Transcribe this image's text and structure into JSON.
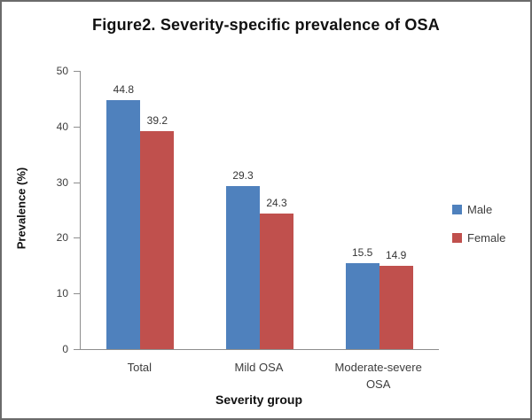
{
  "chart_data": {
    "type": "bar",
    "title": "Figure2. Severity-specific prevalence of OSA",
    "categories": [
      "Total",
      "Mild OSA",
      "Moderate-severe OSA"
    ],
    "series": [
      {
        "name": "Male",
        "color": "#4F81BD",
        "values": [
          44.8,
          29.3,
          15.5
        ]
      },
      {
        "name": "Female",
        "color": "#C0504D",
        "values": [
          39.2,
          24.3,
          14.9
        ]
      }
    ],
    "value_labels": [
      "44.8",
      "39.2",
      "29.3",
      "24.3",
      "15.5",
      "14.9"
    ],
    "xlabel": "Severity group",
    "ylabel": "Prevalence (%)",
    "ylim": [
      0,
      50
    ],
    "yticks": [
      0,
      10,
      20,
      30,
      40,
      50
    ],
    "grid": false,
    "legend_position": "right",
    "colors": {
      "axis": "#8e8e8e",
      "tick_text": "#3d3d3d",
      "title_text": "#111111",
      "figure_border": "#6b6b6b",
      "background": "#ffffff"
    }
  }
}
